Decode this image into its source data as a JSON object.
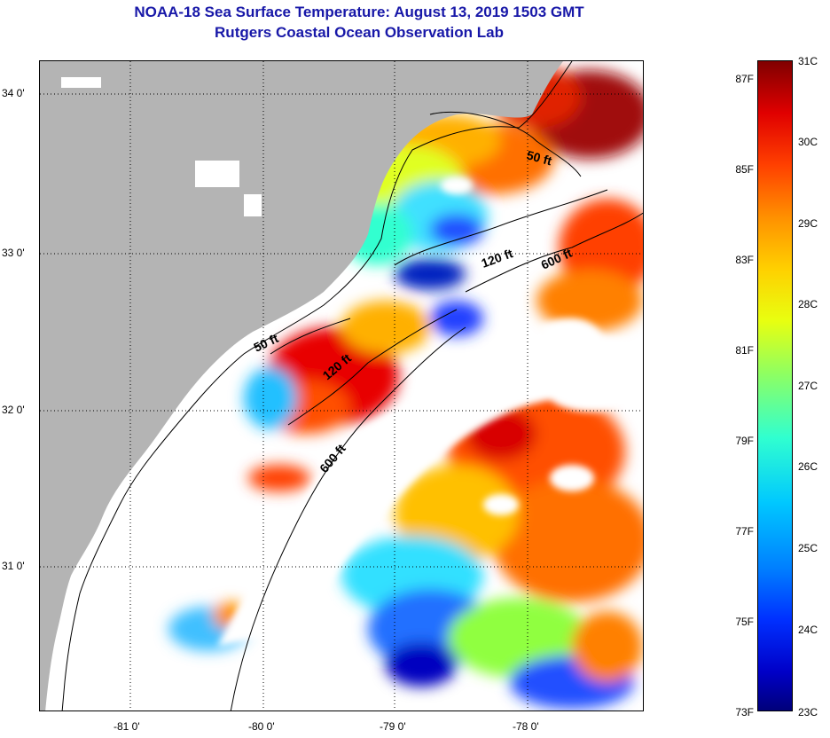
{
  "title": {
    "line1": "NOAA-18 Sea Surface Temperature:  August 13, 2019 1503 GMT",
    "line2": "Rutgers Coastal Ocean Observation Lab"
  },
  "map": {
    "colors": {
      "land": "#b4b4b4",
      "cloud": "#ffffff",
      "contour": "#000000"
    },
    "lat_labels": [
      "34 0'",
      "33 0'",
      "32 0'",
      "31 0'"
    ],
    "lon_labels": [
      "-81 0'",
      "-80 0'",
      "-79 0'",
      "-78 0'"
    ],
    "contour_labels": [
      "50 ft",
      "120 ft",
      "600 ft",
      "50 ft",
      "120 ft",
      "600 ft"
    ]
  },
  "colorbar": {
    "fahrenheit_labels": [
      "87F",
      "85F",
      "83F",
      "81F",
      "79F",
      "77F",
      "75F",
      "73F"
    ],
    "celsius_labels": [
      "31C",
      "30C",
      "29C",
      "28C",
      "27C",
      "26C",
      "25C",
      "24C",
      "23C"
    ]
  }
}
